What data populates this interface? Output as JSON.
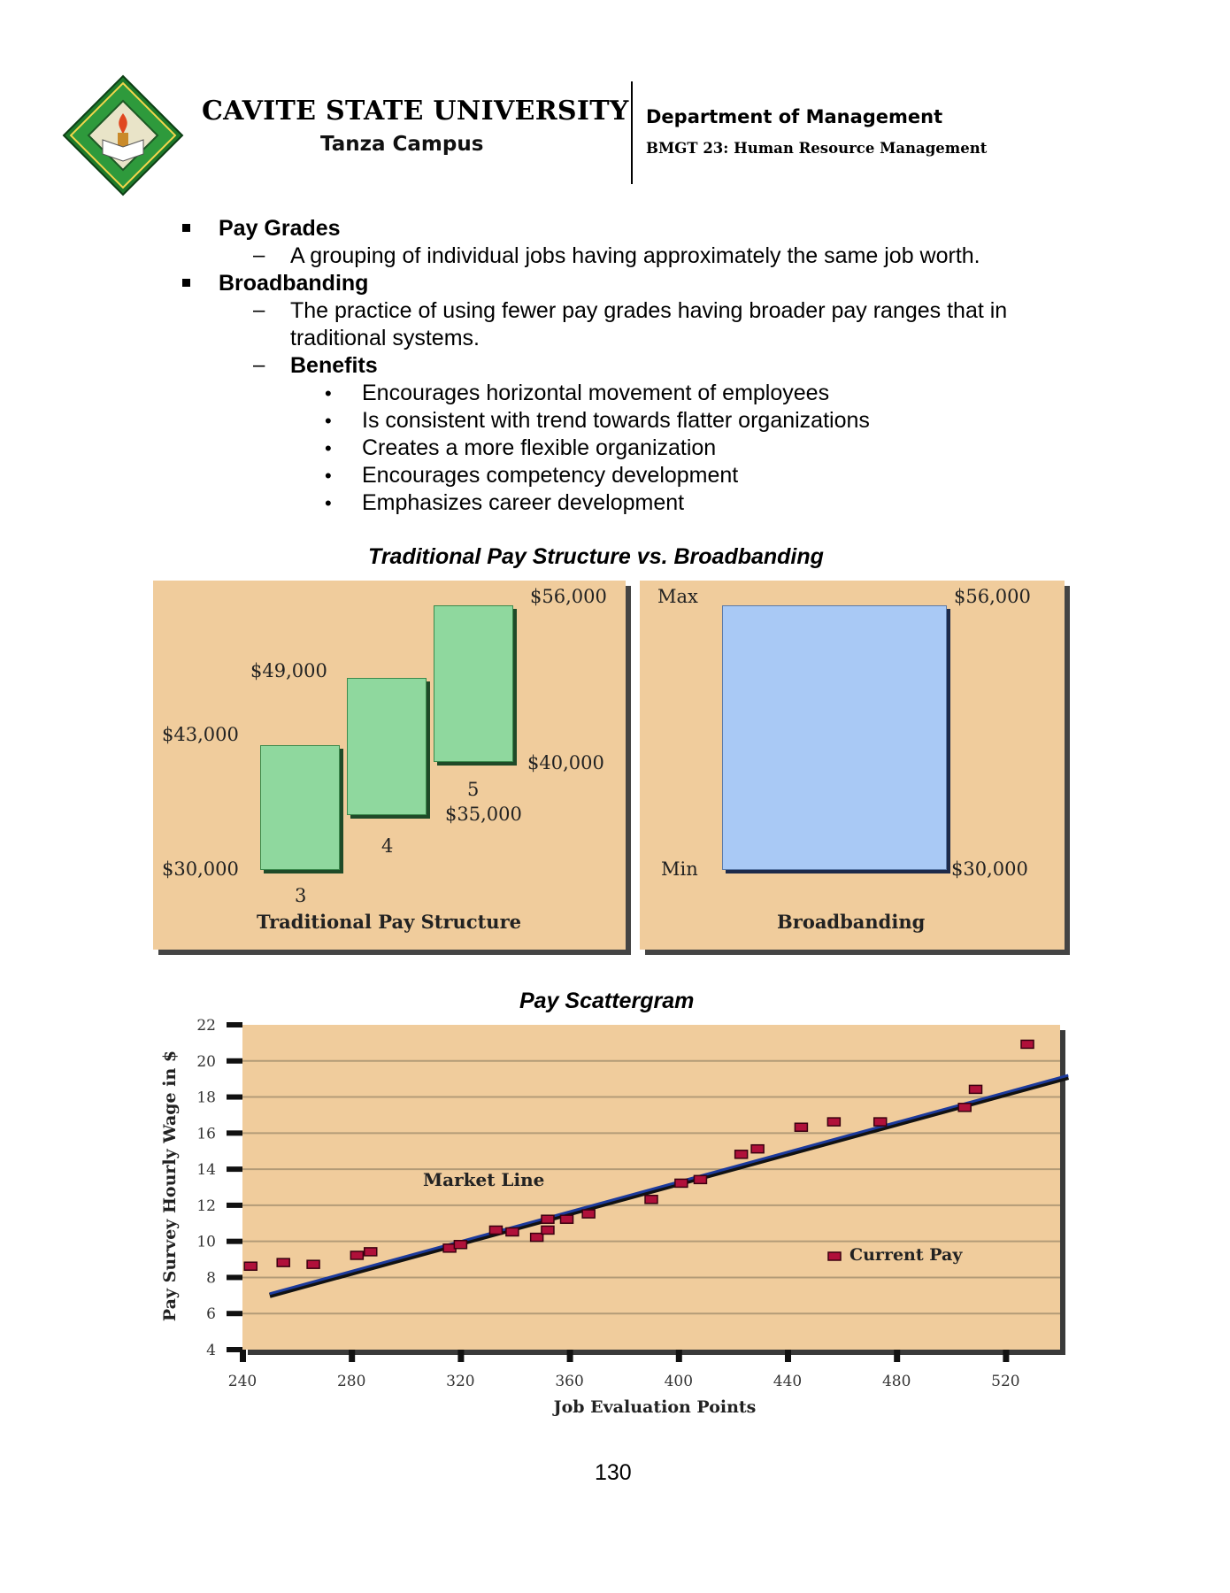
{
  "header": {
    "university": "CAVITE STATE UNIVERSITY",
    "campus": "Tanza Campus",
    "department": "Department of Management",
    "course": "BMGT 23: Human Resource Management",
    "logo_text": "CAVITE STATE UNIVERSITY PHILIPPINES 1906"
  },
  "content": {
    "pay_grades_heading": "Pay Grades",
    "pay_grades_def": "A grouping of individual jobs having approximately the same job worth.",
    "broadbanding_heading": "Broadbanding",
    "broadbanding_def_line1": "The practice of using fewer pay grades having broader pay ranges that in",
    "broadbanding_def_line2": "traditional systems.",
    "benefits_heading": "Benefits",
    "benefits": [
      "Encourages horizontal movement of employees",
      "Is consistent with trend towards flatter organizations",
      "Creates a more flexible organization",
      "Encourages competency development",
      "Emphasizes career development"
    ]
  },
  "figure1": {
    "title": "Traditional Pay Structure vs. Broadbanding",
    "traditional": {
      "title": "Traditional Pay Structure",
      "grades": [
        {
          "grade": "3",
          "min_label": "$30,000",
          "max_label": "$43,000"
        },
        {
          "grade": "4",
          "min_label": "",
          "max_label": "$49,000"
        },
        {
          "grade": "5",
          "min_label": "$35,000",
          "max_label": "$56,000"
        }
      ],
      "extra_label": "$40,000"
    },
    "broadbanding": {
      "title": "Broadbanding",
      "max_word": "Max",
      "min_word": "Min",
      "max_label": "$56,000",
      "min_label": "$30,000"
    }
  },
  "chart_data": {
    "type": "scatter",
    "title": "Pay Scattergram",
    "xlabel": "Job Evaluation Points",
    "ylabel": "Pay Survey Hourly Wage in $",
    "xlim": [
      240,
      540
    ],
    "ylim": [
      4,
      22
    ],
    "xticks": [
      240,
      280,
      320,
      360,
      400,
      440,
      480,
      520
    ],
    "yticks": [
      4,
      6,
      8,
      10,
      12,
      14,
      16,
      18,
      20,
      22
    ],
    "grid": true,
    "annotation": "Market Line",
    "market_line": {
      "x": [
        250,
        543
      ],
      "y": [
        7.1,
        19.2
      ]
    },
    "series": [
      {
        "name": "Current Pay",
        "color": "#b0103a",
        "x": [
          243,
          255,
          266,
          282,
          287,
          316,
          320,
          333,
          339,
          348,
          352,
          352,
          359,
          367,
          390,
          401,
          408,
          423,
          429,
          445,
          457,
          474,
          505,
          509,
          528
        ],
        "y": [
          8.6,
          8.8,
          8.7,
          9.2,
          9.4,
          9.6,
          9.8,
          10.6,
          10.5,
          10.2,
          10.6,
          11.2,
          11.2,
          11.5,
          12.3,
          13.2,
          13.4,
          14.8,
          15.1,
          16.3,
          16.6,
          16.6,
          17.4,
          18.4,
          20.9
        ]
      }
    ]
  },
  "page_number": "130"
}
